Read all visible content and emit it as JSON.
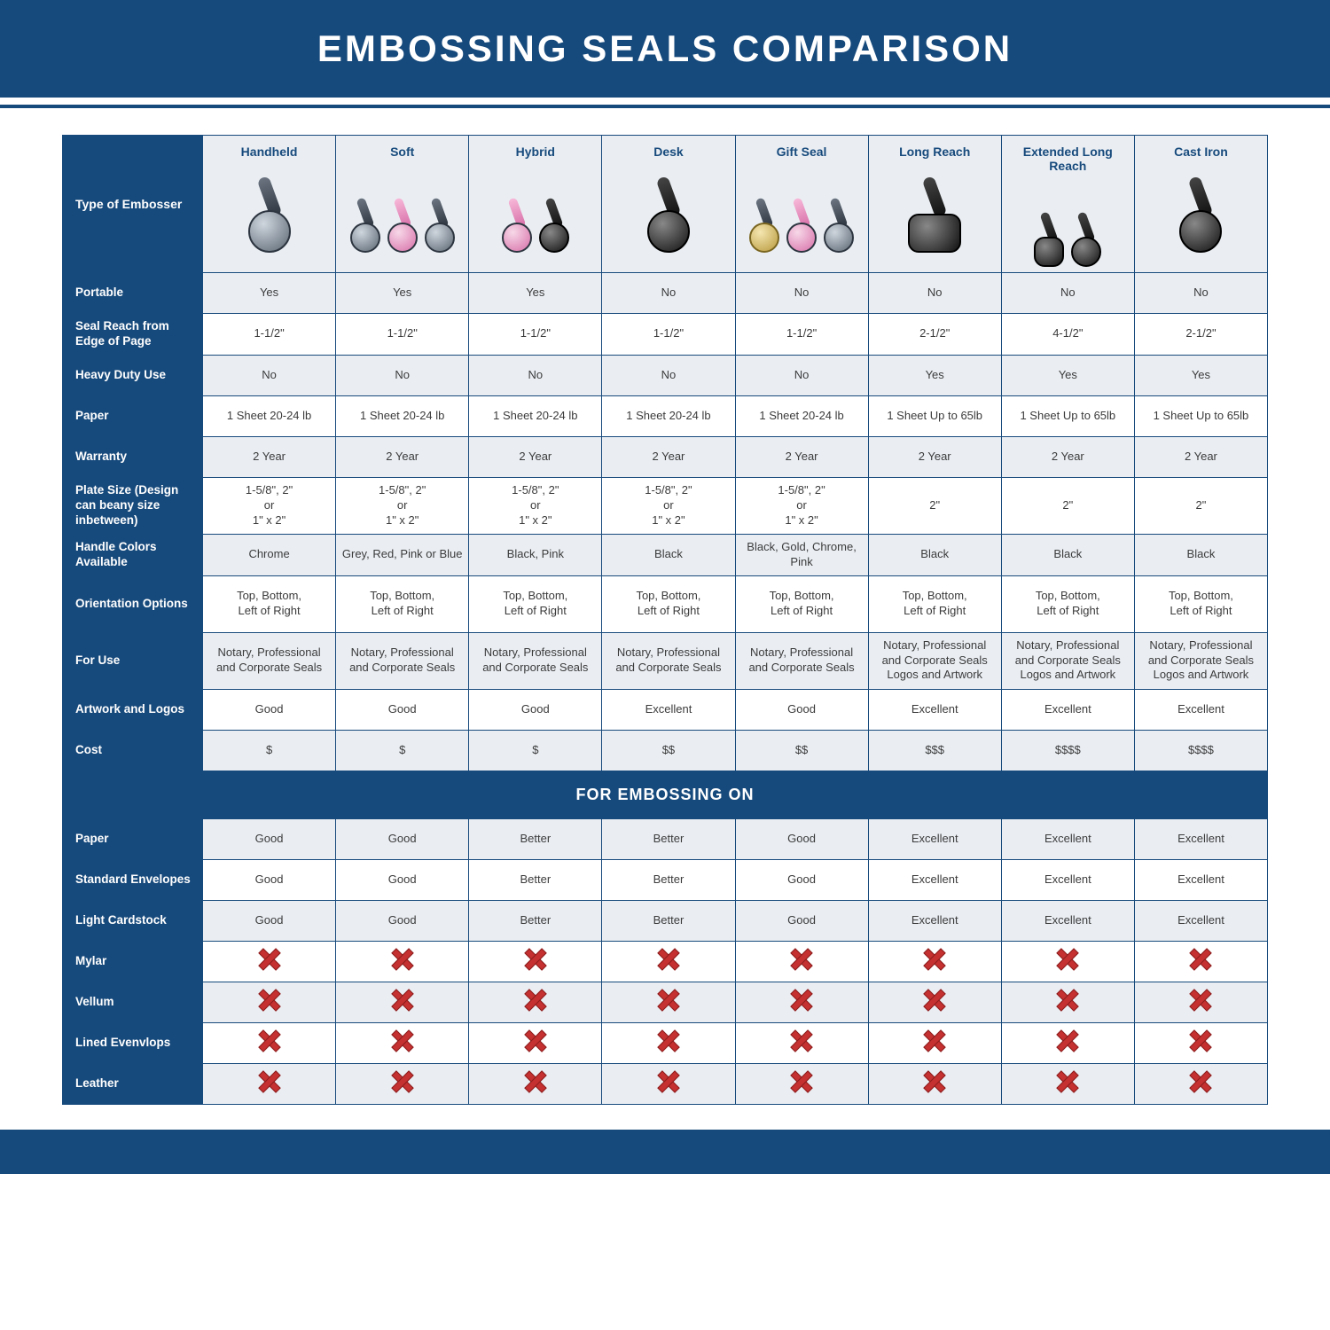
{
  "title": "EMBOSSING SEALS COMPARISON",
  "section_band": "FOR EMBOSSING ON",
  "colors": {
    "brand": "#174a7c",
    "header_row_bg": "#eaeef3",
    "alt_row_bg": "#eaeef3",
    "plain_row_bg": "#ffffff",
    "text": "#3b3b3b",
    "x_red": "#c53030"
  },
  "typography": {
    "title_fontsize": 42,
    "header_fontsize": 14,
    "cell_fontsize": 13,
    "rowlabel_fontsize": 13.5,
    "band_fontsize": 18
  },
  "columns": [
    {
      "key": "handheld",
      "label": "Handheld",
      "icon_style": "chrome"
    },
    {
      "key": "soft",
      "label": "Soft",
      "icon_style": "multi"
    },
    {
      "key": "hybrid",
      "label": "Hybrid",
      "icon_style": "pinkblack"
    },
    {
      "key": "desk",
      "label": "Desk",
      "icon_style": "black"
    },
    {
      "key": "gift",
      "label": "Gift Seal",
      "icon_style": "goldpink"
    },
    {
      "key": "long",
      "label": "Long Reach",
      "icon_style": "blackwide"
    },
    {
      "key": "xlong",
      "label": "Extended Long Reach",
      "icon_style": "blackwide2"
    },
    {
      "key": "cast",
      "label": "Cast Iron",
      "icon_style": "castblack"
    }
  ],
  "corner_label": "Type of Embosser",
  "rows": [
    {
      "label": "Portable",
      "alt": true,
      "cells": [
        "Yes",
        "Yes",
        "Yes",
        "No",
        "No",
        "No",
        "No",
        "No"
      ]
    },
    {
      "label": "Seal Reach from Edge of Page",
      "alt": false,
      "cells": [
        "1-1/2\"",
        "1-1/2\"",
        "1-1/2\"",
        "1-1/2\"",
        "1-1/2\"",
        "2-1/2\"",
        "4-1/2\"",
        "2-1/2\""
      ]
    },
    {
      "label": "Heavy Duty Use",
      "alt": true,
      "cells": [
        "No",
        "No",
        "No",
        "No",
        "No",
        "Yes",
        "Yes",
        "Yes"
      ]
    },
    {
      "label": "Paper",
      "alt": false,
      "cells": [
        "1 Sheet 20-24 lb",
        "1 Sheet 20-24 lb",
        "1 Sheet 20-24 lb",
        "1 Sheet 20-24 lb",
        "1 Sheet 20-24 lb",
        "1 Sheet Up to 65lb",
        "1 Sheet Up to 65lb",
        "1 Sheet Up to 65lb"
      ]
    },
    {
      "label": "Warranty",
      "alt": true,
      "cells": [
        "2 Year",
        "2 Year",
        "2 Year",
        "2 Year",
        "2 Year",
        "2 Year",
        "2 Year",
        "2 Year"
      ]
    },
    {
      "label": "Plate Size (Design can beany size inbetween)",
      "alt": false,
      "tall": true,
      "cells": [
        "1-5/8\", 2\"\nor\n1\" x 2\"",
        "1-5/8\", 2\"\nor\n1\" x 2\"",
        "1-5/8\", 2\"\nor\n1\" x 2\"",
        "1-5/8\", 2\"\nor\n1\" x 2\"",
        "1-5/8\", 2\"\nor\n1\" x 2\"",
        "2\"",
        "2\"",
        "2\""
      ]
    },
    {
      "label": "Handle Colors Available",
      "alt": true,
      "cells": [
        "Chrome",
        "Grey, Red, Pink or Blue",
        "Black, Pink",
        "Black",
        "Black, Gold, Chrome, Pink",
        "Black",
        "Black",
        "Black"
      ]
    },
    {
      "label": "Orientation Options",
      "alt": false,
      "tall": true,
      "cells": [
        "Top, Bottom,\nLeft of Right",
        "Top, Bottom,\nLeft of Right",
        "Top, Bottom,\nLeft of Right",
        "Top, Bottom,\nLeft of Right",
        "Top, Bottom,\nLeft of Right",
        "Top, Bottom,\nLeft of Right",
        "Top, Bottom,\nLeft of Right",
        "Top, Bottom,\nLeft of Right"
      ]
    },
    {
      "label": "For Use",
      "alt": true,
      "tall": true,
      "cells": [
        "Notary, Professional and Corporate Seals",
        "Notary, Professional and Corporate Seals",
        "Notary, Professional and Corporate Seals",
        "Notary, Professional and Corporate Seals",
        "Notary, Professional and Corporate Seals",
        "Notary, Professional and Corporate Seals Logos and Artwork",
        "Notary, Professional and Corporate Seals Logos and Artwork",
        "Notary, Professional and Corporate Seals Logos and Artwork"
      ]
    },
    {
      "label": "Artwork and Logos",
      "alt": false,
      "cells": [
        "Good",
        "Good",
        "Good",
        "Excellent",
        "Good",
        "Excellent",
        "Excellent",
        "Excellent"
      ]
    },
    {
      "label": "Cost",
      "alt": true,
      "cells": [
        "$",
        "$",
        "$",
        "$$",
        "$$",
        "$$$",
        "$$$$",
        "$$$$"
      ]
    }
  ],
  "material_rows": [
    {
      "label": "Paper",
      "alt": true,
      "cells": [
        "Good",
        "Good",
        "Better",
        "Better",
        "Good",
        "Excellent",
        "Excellent",
        "Excellent"
      ]
    },
    {
      "label": "Standard Envelopes",
      "alt": false,
      "cells": [
        "Good",
        "Good",
        "Better",
        "Better",
        "Good",
        "Excellent",
        "Excellent",
        "Excellent"
      ]
    },
    {
      "label": "Light Cardstock",
      "alt": true,
      "cells": [
        "Good",
        "Good",
        "Better",
        "Better",
        "Good",
        "Excellent",
        "Excellent",
        "Excellent"
      ]
    },
    {
      "label": "Mylar",
      "alt": false,
      "cells": [
        "X",
        "X",
        "X",
        "X",
        "X",
        "X",
        "X",
        "X"
      ]
    },
    {
      "label": "Vellum",
      "alt": true,
      "cells": [
        "X",
        "X",
        "X",
        "X",
        "X",
        "X",
        "X",
        "X"
      ]
    },
    {
      "label": "Lined Evenvlops",
      "alt": false,
      "cells": [
        "X",
        "X",
        "X",
        "X",
        "X",
        "X",
        "X",
        "X"
      ]
    },
    {
      "label": "Leather",
      "alt": true,
      "cells": [
        "X",
        "X",
        "X",
        "X",
        "X",
        "X",
        "X",
        "X"
      ]
    }
  ]
}
